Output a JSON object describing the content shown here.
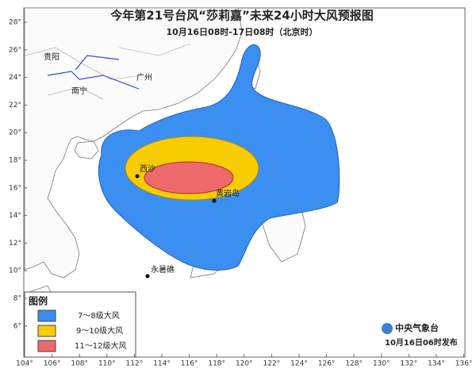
{
  "header": {
    "title": "今年第21号台风“莎莉嘉”未来24小时大风预报图",
    "subtitle": "10月16日08时-17日08时（北京时）"
  },
  "axes": {
    "lon_labels": [
      "104°",
      "106°",
      "108°",
      "110°",
      "112°",
      "114°",
      "116°",
      "118°",
      "120°",
      "122°",
      "124°",
      "126°",
      "128°",
      "130°",
      "132°",
      "134°",
      "136°"
    ],
    "lat_labels": [
      "28°",
      "26°",
      "24°",
      "22°",
      "20°",
      "18°",
      "16°",
      "14°",
      "12°",
      "10°",
      "8°",
      "6°"
    ]
  },
  "places": {
    "guiyang": "贵阳",
    "nanning": "南宁",
    "guangzhou": "广州",
    "xisha": "西沙",
    "huangyan": "黄岩岛",
    "yongshu": "永暑礁"
  },
  "legend": {
    "title": "图例",
    "items": [
      "7～8级大风",
      "9～10级大风",
      "11～12级大风"
    ]
  },
  "footer": {
    "agency": "中央气象台",
    "issued": "10月16日06时发布"
  }
}
